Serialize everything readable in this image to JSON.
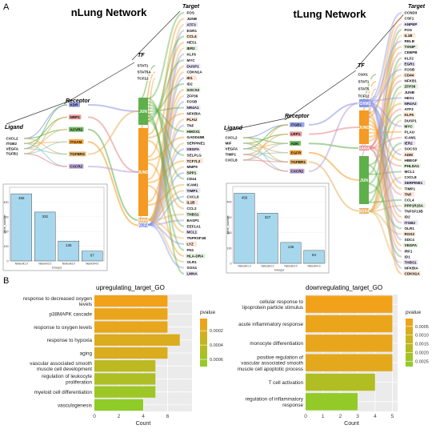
{
  "panel_a_label": "A",
  "panel_b_label": "B",
  "nlung": {
    "title": "nLung Network",
    "level_labels": {
      "ligand": "Ligand",
      "receptor": "Receptor",
      "tf": "TF",
      "target": "Target"
    },
    "ligands": [
      "CXCL2",
      "ITGB2",
      "VEGFA",
      "TGFB1"
    ],
    "receptors": [
      "KDR",
      "NRP1",
      "ACVR1",
      "ITGAM",
      "TGFBR2",
      "CXCR2"
    ],
    "tfs": [
      "STAT1",
      "STAT5A",
      "TCF12"
    ],
    "hubs": [
      "JUN",
      "JUND",
      "RARA",
      "KLF4"
    ],
    "targets": [
      "FOS",
      "JUNB",
      "ATF3",
      "EGR1",
      "CCL4",
      "HES1",
      "IER2",
      "KLF6",
      "MYC",
      "DUSP1",
      "CDKN1A",
      "ID1",
      "ID2",
      "SOCS3",
      "ZFP36",
      "FOSB",
      "NR4A1",
      "NFKBIA",
      "PLAU",
      "TNF",
      "HMOX1",
      "GADD45B",
      "SERPINE1",
      "VEGFA",
      "SELPLG",
      "TCF7L2",
      "MMP9",
      "SPP1",
      "CD44",
      "ICAM1",
      "TIMP1",
      "CXCL8",
      "IL1B",
      "CCL2",
      "THBS1",
      "BASP1",
      "EEF1A1",
      "MCL1",
      "TNFRSF1B",
      "LYZ",
      "FN1",
      "HLA-DRA",
      "OLR1",
      "SOX4",
      "LMNA"
    ],
    "inset": {
      "ylabel": "gene_number",
      "xlabel": "Groups",
      "ylim": [
        0,
        500
      ],
      "yticks": [
        "0",
        "100",
        "200",
        "300",
        "400"
      ],
      "categories": [
        "Network1.0",
        "Network2.0",
        "Network3.0",
        "Network4.0"
      ],
      "values": [
        456,
        332,
        135,
        67
      ],
      "value_labels": [
        "456",
        "332",
        "135",
        "67"
      ]
    }
  },
  "tlung": {
    "title": "tLung Network",
    "level_labels": {
      "ligand": "Ligand",
      "receptor": "Receptor",
      "tf": "TF",
      "target": "Target"
    },
    "ligands": [
      "CXCL2",
      "MIF",
      "VEGFA",
      "TIMP1",
      "CXCL8"
    ],
    "receptors": [
      "ITGB1",
      "LRP1",
      "ADK",
      "EGFR",
      "TGFBR1",
      "CXCR2"
    ],
    "tfs": [
      "CUX1",
      "STAT1",
      "STAT5",
      "TCF12"
    ],
    "hubs": [
      "FOXM1",
      "JUND",
      "RARA",
      "JUN",
      "SOX4"
    ],
    "targets": [
      "CCND3",
      "CSF1",
      "ANPEP",
      "FOS",
      "IL1B",
      "RELB",
      "TXNIP",
      "CEBPB",
      "KLF2",
      "EGR1",
      "FOSB",
      "CD44",
      "NFKB1",
      "ZFP36",
      "JUNB",
      "HES1",
      "NR4A2",
      "ATF3",
      "KLF6",
      "DUSP1",
      "MYC",
      "PLAU",
      "ICAM1",
      "IER2",
      "SOCS3",
      "ADM",
      "HBEGF",
      "PHLDA1",
      "MCL1",
      "CXCL8",
      "SERPINE1",
      "TIMP1",
      "TNF",
      "CCL4",
      "PPP1R15A",
      "TNFSF13B",
      "ID2",
      "ITGB2",
      "OLR1",
      "RGS2",
      "SDC4",
      "VEGFA",
      "IRF1",
      "ID1",
      "THBS1",
      "NFKBIA",
      "CDKN1A"
    ],
    "inset": {
      "ylabel": "gene_number",
      "xlabel": "Groups",
      "ylim": [
        0,
        500
      ],
      "yticks": [
        "0",
        "100",
        "200",
        "300",
        "400"
      ],
      "categories": [
        "Network1.0",
        "Network2.0",
        "Network3.0",
        "Network4.0"
      ],
      "values": [
        456,
        327,
        136,
        84
      ],
      "value_labels": [
        "456",
        "327",
        "136",
        "84"
      ]
    }
  },
  "up_go": {
    "title": "upregulating_target_GO",
    "xlabel": "Count",
    "xlim": [
      0,
      8
    ],
    "xticks": [
      "0",
      "2",
      "4",
      "6"
    ],
    "terms": [
      "response to decreased oxygen levels",
      "p38MAPK cascade",
      "response to oxygen levels",
      "response to hypoxia",
      "aging",
      "vascular associated smooth muscle cell development",
      "regulation of leukocyte proliferation",
      "myeloid cell differentiation",
      "vasculogenesis"
    ],
    "term_lines": [
      [
        "response to decreased oxygen",
        "levels"
      ],
      [
        "p38MAPK cascade"
      ],
      [
        "response to oxygen levels"
      ],
      [
        "response to hypoxia"
      ],
      [
        "aging"
      ],
      [
        "vascular associated smooth",
        "muscle cell development"
      ],
      [
        "regulation of leukocyte",
        "proliferation"
      ],
      [
        "myeloid cell differentiation"
      ],
      [
        "vasculogenesis"
      ]
    ],
    "counts": [
      6,
      6,
      6,
      7,
      6,
      5,
      5,
      5,
      4
    ],
    "pvalues": [
      5e-05,
      0.0001,
      0.00012,
      0.0002,
      0.0002,
      0.0004,
      0.0005,
      0.0006,
      0.0007
    ],
    "legend": {
      "title": "pvalue",
      "ticks": [
        "0.0002",
        "0.0004",
        "0.0006"
      ],
      "tick_values": [
        0.0002,
        0.0004,
        0.0006
      ],
      "range": [
        3e-05,
        0.0007
      ]
    }
  },
  "down_go": {
    "title": "downregulating_target_GO",
    "xlabel": "Count",
    "xlim": [
      0,
      5.3
    ],
    "xticks": [
      "0",
      "1",
      "2",
      "3",
      "4",
      "5"
    ],
    "terms": [
      "cellular response to lipoprotein particle stimulus",
      "acute inflammatory response",
      "monocyte differentiation",
      "positive regulation of vascular associated smooth muscle cell apoptotic process",
      "T cell activation",
      "regulation of inflammatory response"
    ],
    "term_lines": [
      [
        "cellular response to",
        "lipoprotein particle stimulus"
      ],
      [
        "acute inflammatory response"
      ],
      [
        "monocyte differentiation"
      ],
      [
        "positive regulation of",
        "vascular associated smooth",
        "muscle cell apoptotic process"
      ],
      [
        "T cell activation"
      ],
      [
        "regulation of inflammatory",
        "response"
      ]
    ],
    "counts": [
      5,
      5,
      5,
      5,
      4,
      3
    ],
    "pvalues": [
      0.0001,
      0.0003,
      0.0004,
      0.0005,
      0.0019,
      0.0027
    ],
    "legend": {
      "title": "pvalue",
      "ticks": [
        "0.0005",
        "0.0010",
        "0.0015",
        "0.0020",
        "0.0025"
      ],
      "tick_values": [
        0.0005,
        0.001,
        0.0015,
        0.002,
        0.0025
      ],
      "range": [
        5e-05,
        0.0028
      ]
    }
  },
  "colors": {
    "blue": "#8a96e8",
    "red": "#e58a8a",
    "green": "#5fb04b",
    "orange": "#f59a23",
    "tan": "#e8b060",
    "bar": "#a7d7ec",
    "go_hot": "#f4a11a",
    "go_cold": "#8fcc28"
  }
}
